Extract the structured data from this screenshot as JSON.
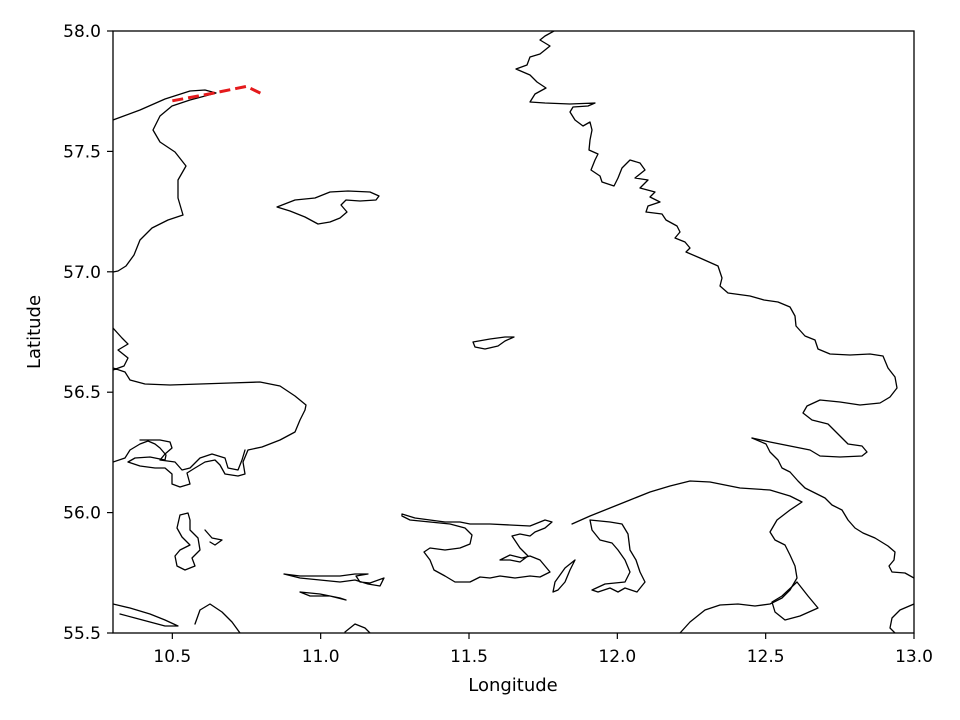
{
  "chart_data": {
    "type": "line",
    "title": "",
    "xlabel": "Longitude",
    "ylabel": "Latitude",
    "xlim": [
      10.3,
      13.0
    ],
    "ylim": [
      55.5,
      58.0
    ],
    "xticks": [
      10.5,
      11.0,
      11.5,
      12.0,
      12.5,
      13.0
    ],
    "yticks": [
      55.5,
      56.0,
      56.5,
      57.0,
      57.5,
      58.0
    ],
    "xtick_labels": [
      "10.5",
      "11.0",
      "11.5",
      "12.0",
      "12.5",
      "13.0"
    ],
    "ytick_labels": [
      "55.5",
      "56.0",
      "56.5",
      "57.0",
      "57.5",
      "58.0"
    ],
    "grid": false,
    "legend": "none",
    "series": [
      {
        "style": "dashed",
        "color": "#e41a1c",
        "x": [
          10.5,
          10.63,
          10.75,
          10.8
        ],
        "y": [
          57.71,
          57.74,
          57.77,
          57.74
        ]
      }
    ],
    "coastline_color": "#000000"
  }
}
